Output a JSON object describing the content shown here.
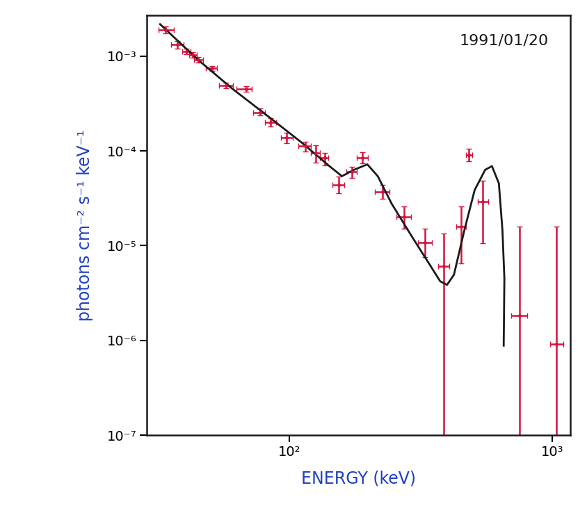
{
  "chart_data": {
    "type": "scatter",
    "log": true,
    "grid": false,
    "annotation": "1991/01/20",
    "x_label": "ENERGY (keV)",
    "y_label": "photons cm⁻² s⁻¹ keV⁻¹",
    "xlim": [
      28.7,
      1170
    ],
    "ylim": [
      1e-07,
      0.0027
    ],
    "xticks": [
      {
        "value": 100,
        "label": "10²"
      },
      {
        "value": 1000,
        "label": "10³"
      }
    ],
    "yticks": [
      {
        "value": 1e-07,
        "label": "10⁻⁷"
      },
      {
        "value": 1e-06,
        "label": "10⁻⁶"
      },
      {
        "value": 1e-05,
        "label": "10⁻⁵"
      },
      {
        "value": 0.0001,
        "label": "10⁻⁴"
      },
      {
        "value": 0.001,
        "label": "10⁻³"
      }
    ],
    "series": [
      {
        "type": "errorbar",
        "color": "#d4143c",
        "marker": "point",
        "x": [
          33.8,
          37.5,
          40.6,
          42.8,
          45,
          50.7,
          57.3,
          68.7,
          77.5,
          84.9,
          97.5,
          115,
          126,
          136,
          154,
          173,
          189,
          226,
          273,
          328,
          386,
          450,
          483,
          545,
          752,
          1038
        ],
        "x_low": [
          31.8,
          35.5,
          39,
          41.5,
          43.5,
          48,
          54,
          63,
          73,
          81,
          93,
          108,
          121,
          131,
          146,
          165,
          180,
          212,
          256,
          308,
          368,
          432,
          470,
          520,
          700,
          980
        ],
        "x_high": [
          36.4,
          39.5,
          42,
          44.5,
          47,
          53,
          61,
          72,
          81,
          89,
          103,
          121,
          131,
          141,
          162,
          181,
          199,
          241,
          291,
          348,
          405,
          470,
          496,
          570,
          805,
          1100
        ],
        "values": [
          0.0019,
          0.00132,
          0.00112,
          0.00103,
          0.00091,
          0.00074,
          0.00049,
          0.00045,
          0.000255,
          0.0002,
          0.000137,
          0.000112,
          9.5e-05,
          8.5e-05,
          4.4e-05,
          6e-05,
          8.5e-05,
          3.7e-05,
          2e-05,
          1.07e-05,
          6.1e-06,
          1.6e-05,
          9.1e-05,
          2.9e-05,
          1.84e-06,
          9.1e-07
        ],
        "y_low": [
          0.00175,
          0.0012,
          0.00105,
          0.00096,
          0.00085,
          0.0007,
          0.00046,
          0.00042,
          0.000235,
          0.00018,
          0.00012,
          9.8e-05,
          7.5e-05,
          7e-05,
          3.6e-05,
          5.2e-05,
          7.4e-05,
          3.1e-05,
          1.5e-05,
          7.5e-06,
          1e-08,
          6.5e-06,
          7.8e-05,
          1.05e-05,
          1e-08,
          1e-08
        ],
        "y_high": [
          0.00206,
          0.00145,
          0.0012,
          0.0011,
          0.00097,
          0.00078,
          0.00052,
          0.00048,
          0.00028,
          0.00022,
          0.000155,
          0.000125,
          0.000115,
          9.5e-05,
          5.4e-05,
          6.8e-05,
          9.7e-05,
          4.4e-05,
          2.6e-05,
          1.5e-05,
          1.35e-05,
          2.6e-05,
          0.000105,
          4.8e-05,
          1.6e-05,
          1.6e-05
        ]
      },
      {
        "type": "line",
        "color": "#1a1a1a",
        "line_style": "solid",
        "x": [
          32.2,
          45.0,
          60.8,
          82.4,
          111.5,
          142,
          158.5,
          176,
          198,
          217,
          245,
          294,
          342,
          375,
          398,
          423,
          463,
          507,
          556,
          590,
          627,
          647,
          658,
          654
        ],
        "values": [
          0.00217,
          0.00091,
          0.00045,
          0.000235,
          0.000122,
          6.9e-05,
          5.4e-05,
          6.3e-05,
          7.2e-05,
          5.4e-05,
          2.77e-05,
          1.22e-05,
          6.3e-06,
          4.2e-06,
          3.85e-06,
          4.93e-06,
          1.44e-05,
          3.85e-05,
          6.3e-05,
          6.9e-05,
          4.54e-05,
          1.44e-05,
          4.5e-06,
          8.8e-07
        ]
      }
    ]
  }
}
